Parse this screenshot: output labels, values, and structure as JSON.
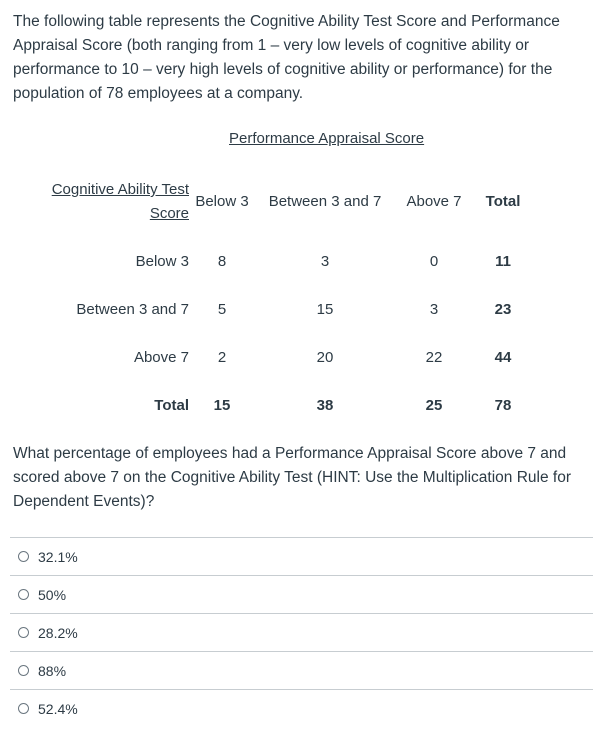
{
  "intro": "The following table represents the Cognitive Ability Test Score and Performance Appraisal Score (both ranging from 1 – very low levels of cognitive ability or performance to 10 – very high levels of cognitive ability or performance) for the population of 78 employees at a company.",
  "table": {
    "perf_header": "Performance Appraisal Score",
    "cog_header": "Cognitive Ability Test Score",
    "columns": [
      "Below 3",
      "Between 3 and 7",
      "Above 7",
      "Total"
    ],
    "rows": [
      {
        "label": "Below 3",
        "values": [
          "8",
          "3",
          "0",
          "11"
        ]
      },
      {
        "label": "Between 3 and 7",
        "values": [
          "5",
          "15",
          "3",
          "23"
        ]
      },
      {
        "label": "Above 7",
        "values": [
          "2",
          "20",
          "22",
          "44"
        ]
      },
      {
        "label": "Total",
        "values": [
          "15",
          "38",
          "25",
          "78"
        ]
      }
    ]
  },
  "question": "What percentage of employees had a Performance Appraisal Score above 7 and scored above 7 on the Cognitive Ability Test (HINT: Use the Multiplication Rule for Dependent Events)?",
  "answers": [
    "32.1%",
    "50%",
    "28.2%",
    "88%",
    "52.4%"
  ]
}
